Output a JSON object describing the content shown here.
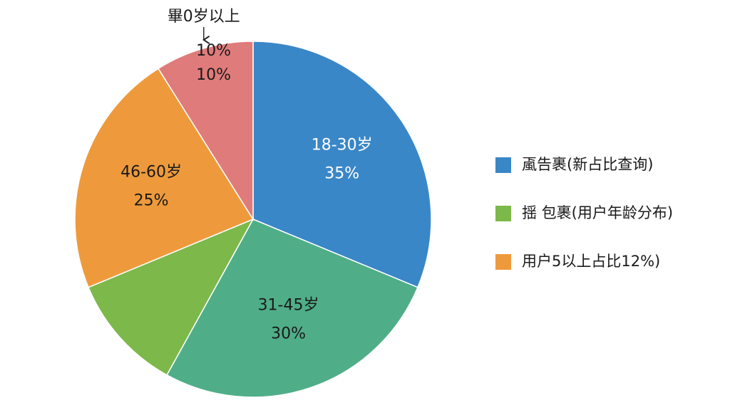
{
  "chart_data": {
    "type": "pie",
    "categories": [
      "18-30岁",
      "31-45岁",
      null,
      "46-60岁",
      "畢0岁以上"
    ],
    "values": [
      35,
      30,
      12,
      25,
      10
    ],
    "value_labels": [
      "35%",
      "30%",
      null,
      "25%",
      "10%"
    ],
    "colors": [
      "#3a87c8",
      "#4fae88",
      "#7cb84a",
      "#ee9a3c",
      "#e07b7b"
    ],
    "label_colors": [
      "#ffffff",
      "#1a1a1a",
      "#1a1a1a",
      "#1a1a1a",
      "#1a1a1a"
    ],
    "annotation": "10%",
    "legend": [
      {
        "name": "颪告裹(新占比查询)",
        "color": "#3a87c8"
      },
      {
        "name": "揺 包裹(用户年龄分布)",
        "color": "#7cb84a"
      },
      {
        "name": "用户5以上占比12%)",
        "color": "#ee9a3c"
      }
    ]
  }
}
